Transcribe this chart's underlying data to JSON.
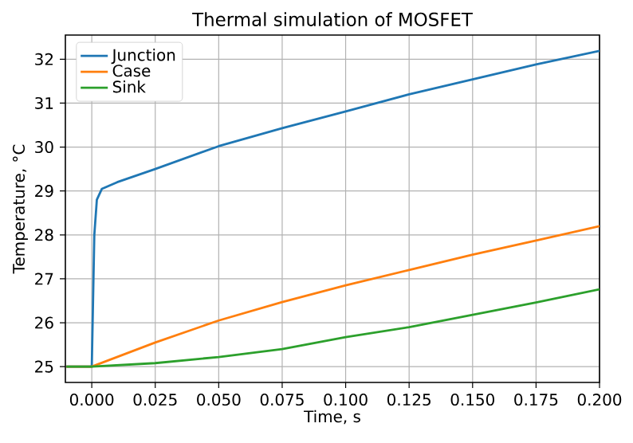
{
  "chart_data": {
    "type": "line",
    "title": "Thermal simulation of MOSFET",
    "xlabel": "Time, s",
    "ylabel": "Temperature, °C",
    "xlim": [
      -0.0104,
      0.2
    ],
    "ylim": [
      24.64,
      32.55
    ],
    "xticks": [
      {
        "value": 0,
        "label": "0.000"
      },
      {
        "value": 0.025,
        "label": "0.025"
      },
      {
        "value": 0.05,
        "label": "0.050"
      },
      {
        "value": 0.075,
        "label": "0.075"
      },
      {
        "value": 0.1,
        "label": "0.100"
      },
      {
        "value": 0.125,
        "label": "0.125"
      },
      {
        "value": 0.15,
        "label": "0.150"
      },
      {
        "value": 0.175,
        "label": "0.175"
      },
      {
        "value": 0.2,
        "label": "0.200"
      }
    ],
    "yticks": [
      25,
      26,
      27,
      28,
      29,
      30,
      31,
      32
    ],
    "grid": true,
    "legend": "top left",
    "series": [
      {
        "name": "Junction",
        "color": "#1f77b4",
        "x": [
          -0.01,
          0,
          0.001,
          0.002,
          0.004,
          0.01,
          0.025,
          0.05,
          0.075,
          0.1,
          0.125,
          0.15,
          0.175,
          0.2
        ],
        "values": [
          25,
          25,
          28.0,
          28.8,
          29.05,
          29.2,
          29.5,
          30.02,
          30.43,
          30.81,
          31.2,
          31.54,
          31.88,
          32.19
        ]
      },
      {
        "name": "Case",
        "color": "#ff7f0e",
        "x": [
          -0.01,
          0,
          0.025,
          0.05,
          0.075,
          0.1,
          0.125,
          0.15,
          0.175,
          0.2
        ],
        "values": [
          25,
          25,
          25.55,
          26.05,
          26.47,
          26.85,
          27.2,
          27.55,
          27.87,
          28.2
        ]
      },
      {
        "name": "Sink",
        "color": "#2ca02c",
        "x": [
          -0.01,
          0,
          0.025,
          0.05,
          0.075,
          0.1,
          0.125,
          0.15,
          0.175,
          0.2
        ],
        "values": [
          25,
          25,
          25.08,
          25.22,
          25.4,
          25.67,
          25.9,
          26.18,
          26.46,
          26.76
        ]
      }
    ]
  }
}
